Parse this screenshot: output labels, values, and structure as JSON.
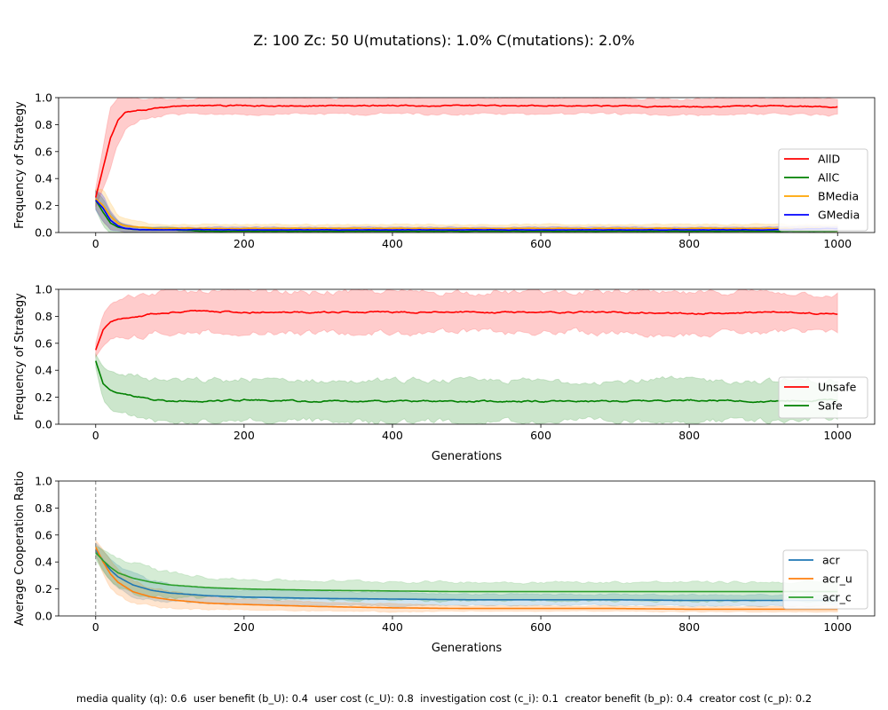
{
  "figure": {
    "suptitle": "Z: 100  Zc: 50  U(mutations): 1.0%  C(mutations): 2.0%",
    "footnote": "media quality (q): 0.6  user benefit (b_U): 0.4  user cost (c_U): 0.8  investigation cost (c_i): 0.1  creator benefit (b_p): 0.4  creator cost (c_p): 0.2"
  },
  "chart_data": [
    {
      "type": "line",
      "xlabel": "",
      "ylabel": "Frequency of Strategy",
      "xlim": [
        -50,
        1050
      ],
      "ylim": [
        0,
        1.0
      ],
      "xticks": [
        0,
        200,
        400,
        600,
        800,
        1000
      ],
      "yticks": [
        0.0,
        0.2,
        0.4,
        0.6,
        0.8,
        1.0
      ],
      "legend": "center-right",
      "series": [
        {
          "name": "AllD",
          "color": "#ff0000",
          "x": [
            0,
            10,
            20,
            30,
            40,
            60,
            80,
            100,
            150,
            200,
            300,
            400,
            500,
            600,
            700,
            800,
            900,
            1000
          ],
          "values": [
            0.26,
            0.48,
            0.7,
            0.83,
            0.89,
            0.91,
            0.92,
            0.93,
            0.94,
            0.94,
            0.94,
            0.94,
            0.94,
            0.94,
            0.94,
            0.93,
            0.94,
            0.93
          ],
          "band": [
            0.07,
            0.15,
            0.22,
            0.18,
            0.12,
            0.08,
            0.07,
            0.06,
            0.06,
            0.06,
            0.06,
            0.06,
            0.06,
            0.06,
            0.06,
            0.06,
            0.06,
            0.07
          ],
          "noise": 0.012
        },
        {
          "name": "AllC",
          "color": "#008000",
          "x": [
            0,
            10,
            20,
            30,
            40,
            60,
            80,
            100,
            150,
            200,
            300,
            400,
            500,
            600,
            700,
            800,
            900,
            1000
          ],
          "values": [
            0.24,
            0.15,
            0.07,
            0.04,
            0.03,
            0.02,
            0.02,
            0.02,
            0.01,
            0.01,
            0.01,
            0.01,
            0.01,
            0.01,
            0.01,
            0.01,
            0.01,
            0.01
          ],
          "band": [
            0.07,
            0.1,
            0.07,
            0.04,
            0.03,
            0.02,
            0.02,
            0.02,
            0.01,
            0.01,
            0.01,
            0.01,
            0.01,
            0.01,
            0.01,
            0.01,
            0.01,
            0.01
          ],
          "noise": 0.003
        },
        {
          "name": "BMedia",
          "color": "#ffa500",
          "x": [
            0,
            10,
            20,
            30,
            40,
            60,
            80,
            100,
            150,
            200,
            300,
            400,
            500,
            600,
            700,
            800,
            900,
            1000
          ],
          "values": [
            0.25,
            0.2,
            0.12,
            0.07,
            0.05,
            0.04,
            0.03,
            0.03,
            0.03,
            0.03,
            0.03,
            0.03,
            0.03,
            0.03,
            0.03,
            0.03,
            0.03,
            0.03
          ],
          "band": [
            0.07,
            0.12,
            0.1,
            0.06,
            0.05,
            0.04,
            0.03,
            0.03,
            0.03,
            0.03,
            0.03,
            0.03,
            0.03,
            0.03,
            0.03,
            0.03,
            0.03,
            0.03
          ],
          "noise": 0.006
        },
        {
          "name": "GMedia",
          "color": "#0000ff",
          "x": [
            0,
            10,
            20,
            30,
            40,
            60,
            80,
            100,
            150,
            200,
            300,
            400,
            500,
            600,
            700,
            800,
            900,
            1000
          ],
          "values": [
            0.24,
            0.18,
            0.09,
            0.05,
            0.03,
            0.02,
            0.02,
            0.02,
            0.02,
            0.02,
            0.02,
            0.02,
            0.02,
            0.02,
            0.02,
            0.02,
            0.02,
            0.03
          ],
          "band": [
            0.07,
            0.1,
            0.07,
            0.04,
            0.03,
            0.02,
            0.02,
            0.02,
            0.02,
            0.02,
            0.02,
            0.02,
            0.02,
            0.02,
            0.02,
            0.02,
            0.02,
            0.02
          ],
          "noise": 0.004
        }
      ]
    },
    {
      "type": "line",
      "xlabel": "Generations",
      "ylabel": "Frequency of Strategy",
      "xlim": [
        -50,
        1050
      ],
      "ylim": [
        0,
        1.0
      ],
      "xticks": [
        0,
        200,
        400,
        600,
        800,
        1000
      ],
      "yticks": [
        0.0,
        0.2,
        0.4,
        0.6,
        0.8,
        1.0
      ],
      "legend": "lower-right",
      "series": [
        {
          "name": "Unsafe",
          "color": "#ff0000",
          "x": [
            0,
            10,
            20,
            30,
            40,
            60,
            80,
            100,
            150,
            200,
            300,
            400,
            500,
            600,
            700,
            800,
            900,
            1000
          ],
          "values": [
            0.55,
            0.7,
            0.76,
            0.78,
            0.79,
            0.8,
            0.82,
            0.83,
            0.84,
            0.83,
            0.83,
            0.83,
            0.83,
            0.83,
            0.83,
            0.82,
            0.83,
            0.82
          ],
          "band": [
            0.05,
            0.12,
            0.14,
            0.15,
            0.15,
            0.15,
            0.15,
            0.15,
            0.15,
            0.15,
            0.15,
            0.15,
            0.15,
            0.15,
            0.15,
            0.15,
            0.15,
            0.14
          ],
          "noise": 0.015
        },
        {
          "name": "Safe",
          "color": "#008000",
          "x": [
            0,
            10,
            20,
            30,
            40,
            60,
            80,
            100,
            150,
            200,
            300,
            400,
            500,
            600,
            700,
            800,
            900,
            1000
          ],
          "values": [
            0.47,
            0.3,
            0.25,
            0.23,
            0.22,
            0.2,
            0.18,
            0.17,
            0.17,
            0.18,
            0.17,
            0.17,
            0.17,
            0.17,
            0.17,
            0.18,
            0.17,
            0.18
          ],
          "band": [
            0.05,
            0.12,
            0.14,
            0.14,
            0.15,
            0.15,
            0.15,
            0.15,
            0.15,
            0.15,
            0.15,
            0.15,
            0.15,
            0.15,
            0.15,
            0.15,
            0.15,
            0.14
          ],
          "noise": 0.015
        }
      ]
    },
    {
      "type": "line",
      "xlabel": "Generations",
      "ylabel": "Average Cooperation Ratio",
      "xlim": [
        -50,
        1050
      ],
      "ylim": [
        0,
        1.0
      ],
      "xticks": [
        0,
        200,
        400,
        600,
        800,
        1000
      ],
      "yticks": [
        0.0,
        0.2,
        0.4,
        0.6,
        0.8,
        1.0
      ],
      "vline_x": 0,
      "legend": "lower-right",
      "series": [
        {
          "name": "acr",
          "color": "#1f77b4",
          "x": [
            0,
            10,
            20,
            30,
            50,
            75,
            100,
            150,
            200,
            300,
            400,
            500,
            600,
            700,
            800,
            900,
            1000
          ],
          "values": [
            0.49,
            0.41,
            0.34,
            0.29,
            0.23,
            0.19,
            0.17,
            0.15,
            0.14,
            0.13,
            0.125,
            0.12,
            0.12,
            0.12,
            0.115,
            0.115,
            0.115
          ],
          "band": [
            0.05,
            0.07,
            0.08,
            0.08,
            0.08,
            0.07,
            0.07,
            0.06,
            0.05,
            0.05,
            0.05,
            0.04,
            0.04,
            0.04,
            0.04,
            0.04,
            0.04
          ],
          "noise": 0
        },
        {
          "name": "acr_u",
          "color": "#ff7f0e",
          "x": [
            0,
            10,
            20,
            30,
            50,
            75,
            100,
            150,
            200,
            300,
            400,
            500,
            600,
            700,
            800,
            900,
            1000
          ],
          "values": [
            0.51,
            0.4,
            0.31,
            0.25,
            0.18,
            0.14,
            0.12,
            0.095,
            0.085,
            0.07,
            0.06,
            0.055,
            0.055,
            0.055,
            0.05,
            0.05,
            0.05
          ],
          "band": [
            0.05,
            0.09,
            0.1,
            0.1,
            0.09,
            0.07,
            0.06,
            0.05,
            0.04,
            0.03,
            0.03,
            0.02,
            0.02,
            0.02,
            0.02,
            0.02,
            0.02
          ],
          "noise": 0
        },
        {
          "name": "acr_c",
          "color": "#2ca02c",
          "x": [
            0,
            10,
            20,
            30,
            50,
            75,
            100,
            150,
            200,
            300,
            400,
            500,
            600,
            700,
            800,
            900,
            1000
          ],
          "values": [
            0.47,
            0.41,
            0.36,
            0.32,
            0.28,
            0.25,
            0.23,
            0.21,
            0.2,
            0.19,
            0.185,
            0.18,
            0.18,
            0.18,
            0.18,
            0.18,
            0.18
          ],
          "band": [
            0.05,
            0.08,
            0.1,
            0.11,
            0.11,
            0.1,
            0.09,
            0.08,
            0.07,
            0.07,
            0.07,
            0.07,
            0.07,
            0.07,
            0.07,
            0.07,
            0.07
          ],
          "noise": 0
        }
      ]
    }
  ]
}
